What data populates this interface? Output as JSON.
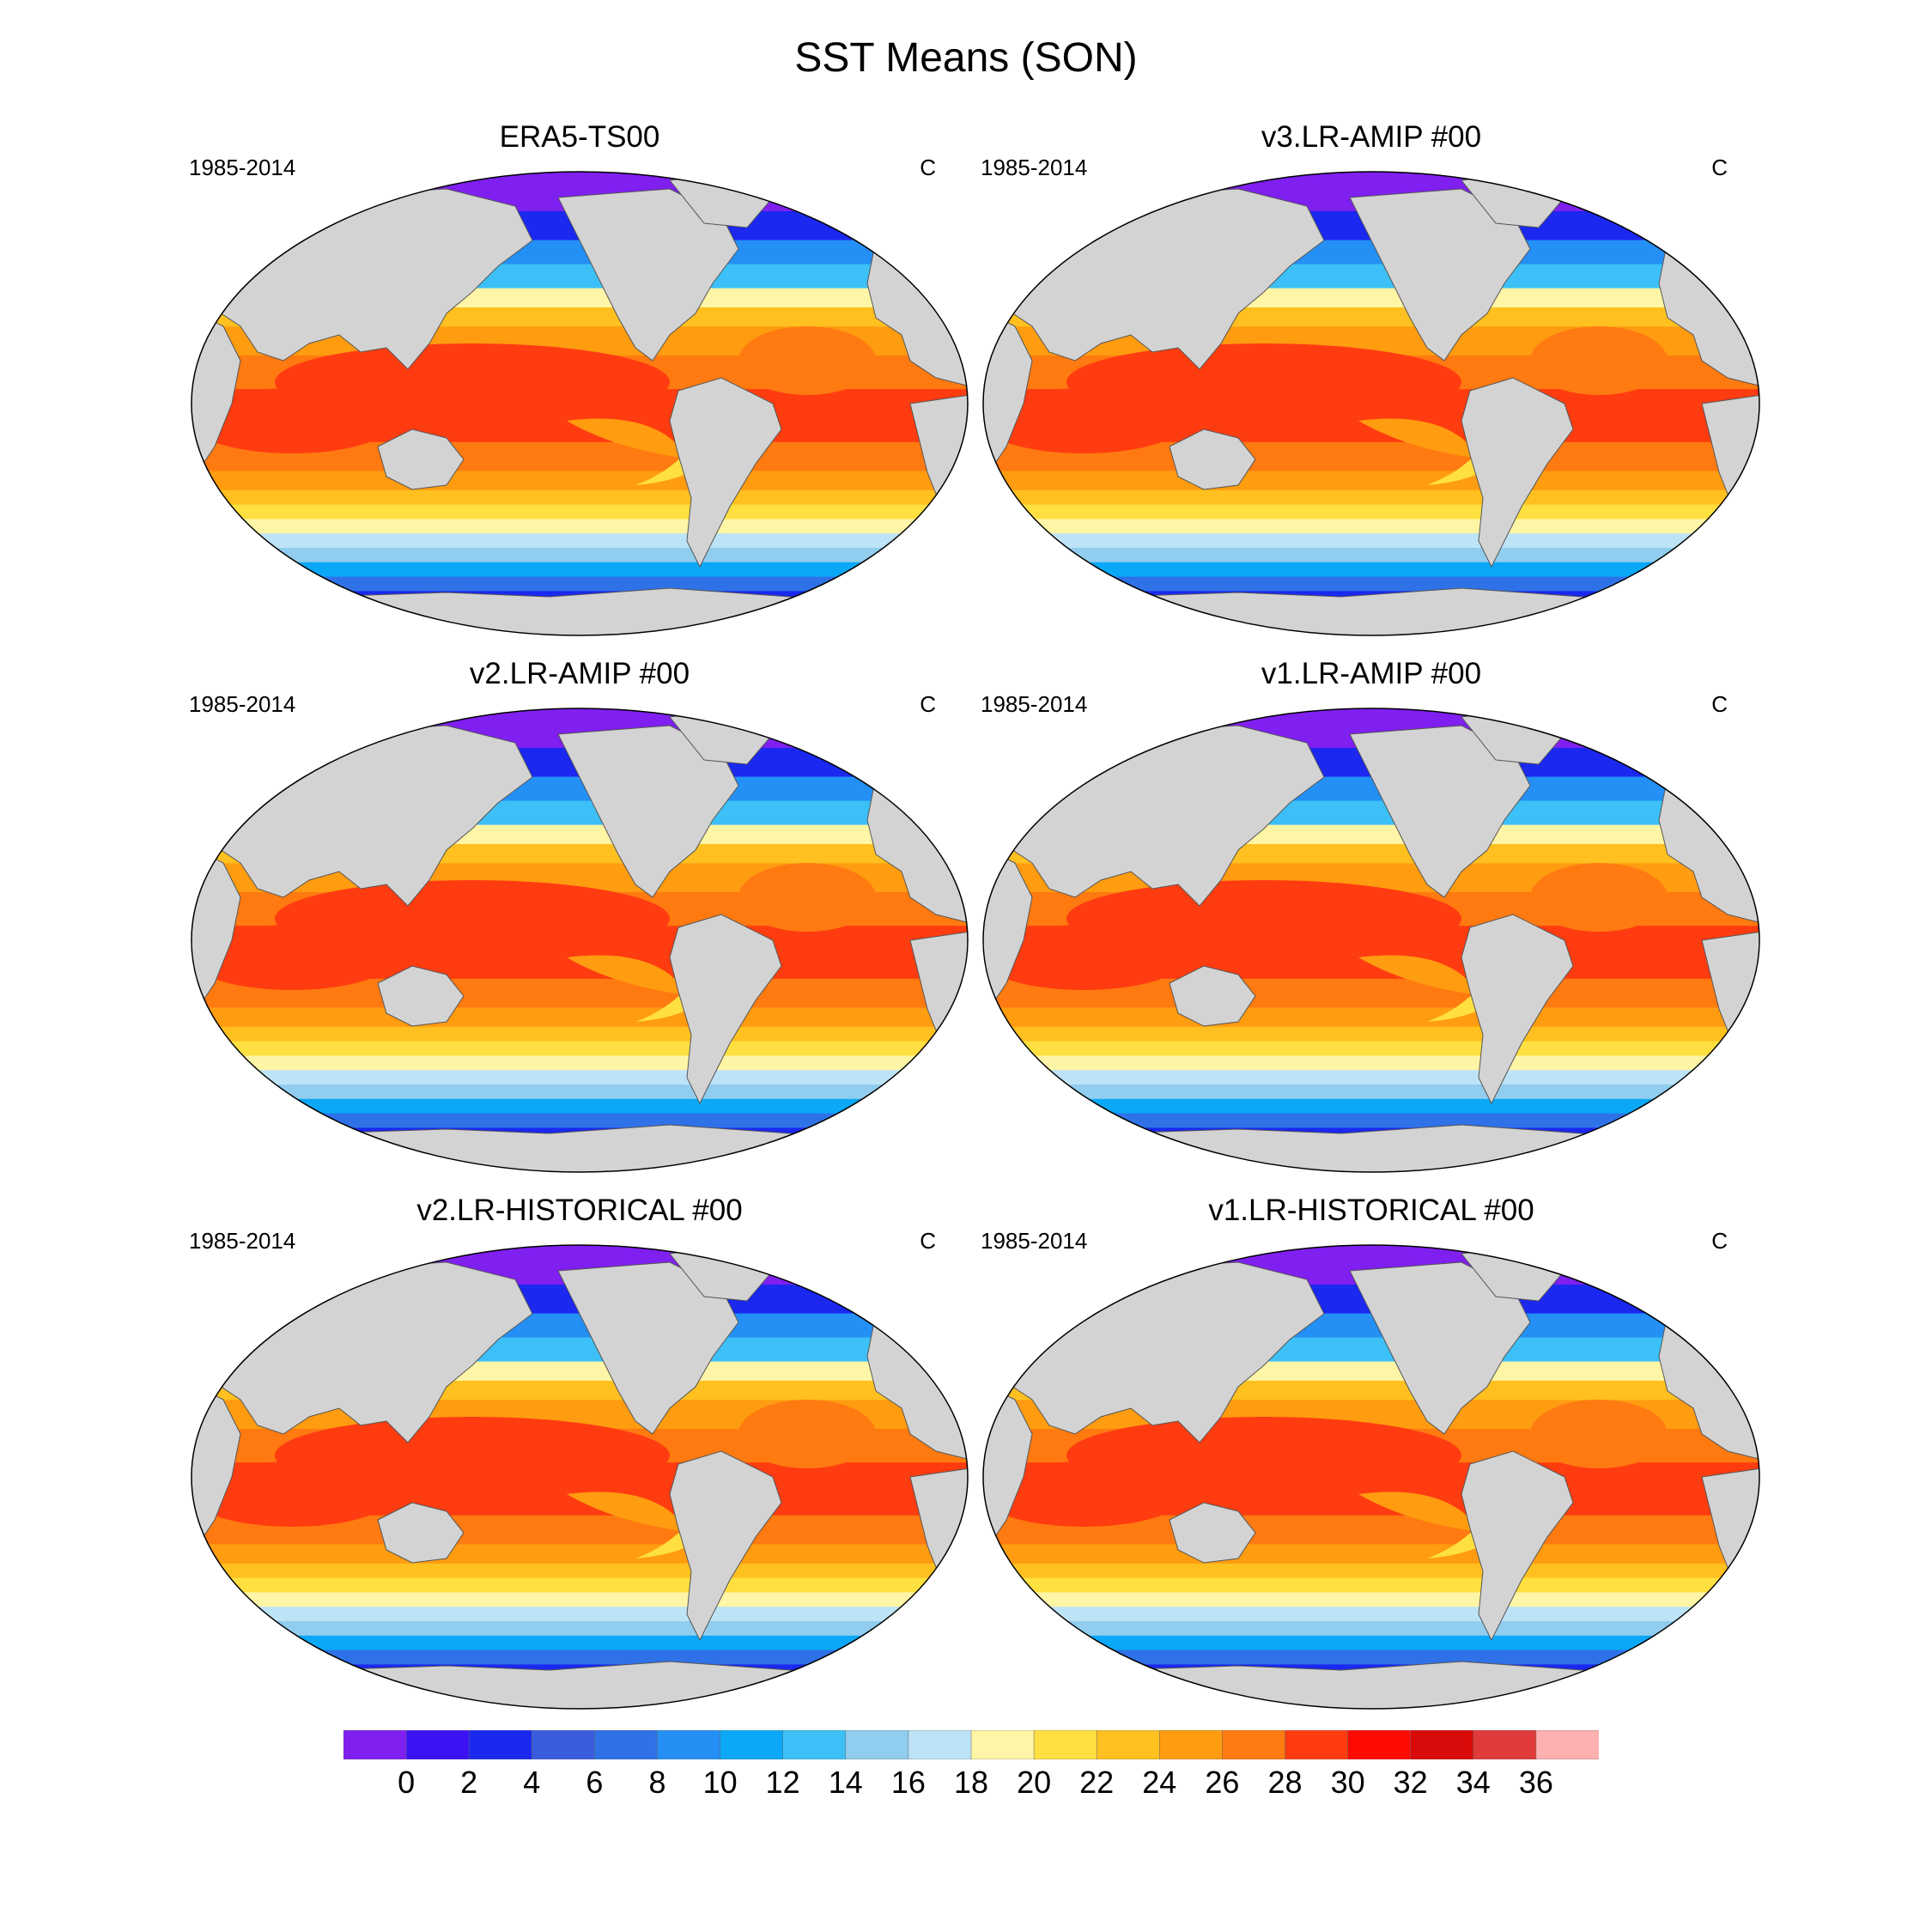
{
  "title": "SST Means (SON)",
  "panels": [
    {
      "title": "ERA5-TS00",
      "period": "1985-2014",
      "units": "C"
    },
    {
      "title": "v3.LR-AMIP  #00",
      "period": "1985-2014",
      "units": "C"
    },
    {
      "title": "v2.LR-AMIP  #00",
      "period": "1985-2014",
      "units": "C"
    },
    {
      "title": "v1.LR-AMIP  #00",
      "period": "1985-2014",
      "units": "C"
    },
    {
      "title": "v2.LR-HISTORICAL  #00",
      "period": "1985-2014",
      "units": "C"
    },
    {
      "title": "v1.LR-HISTORICAL  #00",
      "period": "1985-2014",
      "units": "C"
    }
  ],
  "colorbar": {
    "labels": [
      "0",
      "2",
      "4",
      "6",
      "8",
      "10",
      "12",
      "14",
      "16",
      "18",
      "20",
      "22",
      "24",
      "26",
      "28",
      "30",
      "32",
      "34",
      "36"
    ],
    "colors": [
      "#7f1ff0",
      "#3a12f5",
      "#1a28f0",
      "#3a5ddf",
      "#2f72e8",
      "#2490f5",
      "#0aa8f7",
      "#3cc0f7",
      "#90cdee",
      "#bde3f7",
      "#fff5a6",
      "#ffe040",
      "#ffc020",
      "#ff9c10",
      "#ff7a10",
      "#ff3c10",
      "#ff0a05",
      "#d80a0a",
      "#e03a3a",
      "#ffb0b0"
    ]
  },
  "legend": {
    "land_color": "#d3d3d3"
  }
}
